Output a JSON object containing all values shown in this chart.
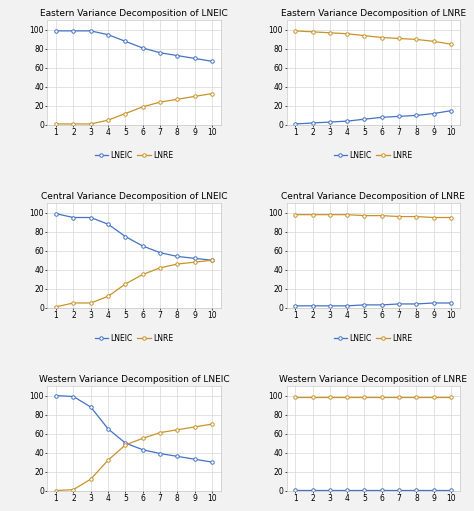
{
  "titles": [
    [
      "Eastern Variance Decomposition of LNEIC",
      "Eastern Variance Decomposition of LNRE"
    ],
    [
      "Central Variance Decomposition of LNEIC",
      "Central Variance Decomposition of LNRE"
    ],
    [
      "Western Variance Decomposition of LNEIC",
      "Western Variance Decomposition of LNRE"
    ]
  ],
  "x": [
    1,
    2,
    3,
    4,
    5,
    6,
    7,
    8,
    9,
    10
  ],
  "data": {
    "east_lneic_lneic": [
      99,
      99,
      99,
      95,
      88,
      81,
      76,
      73,
      70,
      67
    ],
    "east_lneic_lnre": [
      1,
      1,
      1,
      5,
      12,
      19,
      24,
      27,
      30,
      33
    ],
    "east_lnre_lneic": [
      1,
      2,
      3,
      4,
      6,
      8,
      9,
      10,
      12,
      15
    ],
    "east_lnre_lnre": [
      99,
      98,
      97,
      96,
      94,
      92,
      91,
      90,
      88,
      85
    ],
    "cent_lneic_lneic": [
      99,
      95,
      95,
      88,
      75,
      65,
      58,
      54,
      52,
      50
    ],
    "cent_lneic_lnre": [
      1,
      5,
      5,
      12,
      25,
      35,
      42,
      46,
      48,
      50
    ],
    "cent_lnre_lneic": [
      2,
      2,
      2,
      2,
      3,
      3,
      4,
      4,
      5,
      5
    ],
    "cent_lnre_lnre": [
      98,
      98,
      98,
      98,
      97,
      97,
      96,
      96,
      95,
      95
    ],
    "west_lneic_lneic": [
      100,
      99,
      88,
      65,
      50,
      43,
      39,
      36,
      33,
      30
    ],
    "west_lneic_lnre": [
      0,
      1,
      12,
      32,
      48,
      55,
      61,
      64,
      67,
      70
    ],
    "west_lnre_lneic": [
      1,
      1,
      1,
      1,
      1,
      1,
      1,
      1,
      1,
      1
    ],
    "west_lnre_lnre": [
      99,
      99,
      99,
      99,
      99,
      99,
      99,
      99,
      99,
      99
    ]
  },
  "color_blue": "#4472C4",
  "color_orange": "#C8922A",
  "legend_labels": [
    "LNEIC",
    "LNRE"
  ],
  "title_fontsize": 6.5,
  "legend_fontsize": 5.5,
  "tick_fontsize": 5.5,
  "background_color": "#F2F2F2",
  "plot_bg_color": "#FFFFFF",
  "grid_color": "#D8D8D8"
}
